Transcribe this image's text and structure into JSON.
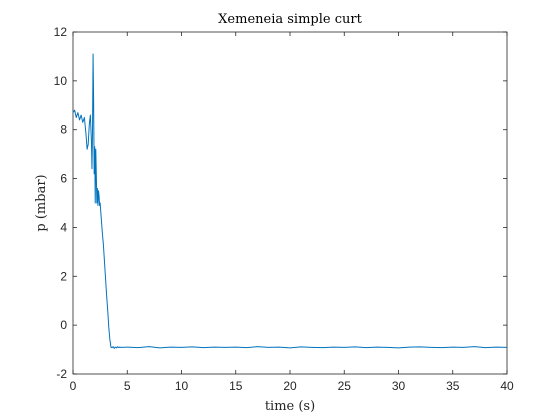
{
  "chart_data": {
    "type": "line",
    "title": "Xemeneia simple curt",
    "xlabel": "time (s)",
    "ylabel": "p (mbar)",
    "xlim": [
      0,
      40
    ],
    "ylim": [
      -2,
      12
    ],
    "xticks": [
      0,
      5,
      10,
      15,
      20,
      25,
      30,
      35,
      40
    ],
    "yticks": [
      -2,
      0,
      2,
      4,
      6,
      8,
      10,
      12
    ],
    "xtick_labels": [
      "0",
      "5",
      "10",
      "15",
      "20",
      "25",
      "30",
      "35",
      "40"
    ],
    "ytick_labels": [
      "-2",
      "0",
      "2",
      "4",
      "6",
      "8",
      "10",
      "12"
    ],
    "grid": false,
    "color": "#0072BD",
    "series": [
      {
        "x": [
          0,
          0.15,
          0.3,
          0.45,
          0.6,
          0.75,
          0.9,
          1.05,
          1.2,
          1.3,
          1.4,
          1.5,
          1.6,
          1.7,
          1.75,
          1.8,
          1.85,
          1.9,
          1.95,
          2.0,
          2.05,
          2.1,
          2.15,
          2.2,
          2.25,
          2.3,
          2.35,
          2.4,
          2.45,
          2.5,
          2.55,
          2.6,
          2.65,
          2.7,
          2.8,
          2.9,
          3.0,
          3.1,
          3.2,
          3.3,
          3.4,
          3.5,
          3.6,
          3.7,
          3.8,
          3.9,
          4.0,
          4.1,
          4.2,
          4.3,
          4.5,
          5.0,
          6,
          7,
          8,
          9,
          10,
          11,
          12,
          13,
          14,
          15,
          16,
          17,
          18,
          19,
          20,
          21,
          22,
          23,
          24,
          25,
          26,
          27,
          28,
          29,
          30,
          31,
          32,
          33,
          34,
          35,
          36,
          37,
          38,
          39,
          40
        ],
        "y": [
          8.7,
          8.8,
          8.5,
          8.7,
          8.4,
          8.6,
          8.3,
          8.5,
          7.8,
          7.2,
          7.4,
          8.2,
          8.6,
          7.5,
          6.4,
          8.0,
          11.1,
          9.2,
          6.2,
          7.3,
          5.0,
          7.2,
          6.1,
          5.0,
          5.6,
          4.9,
          5.5,
          5.3,
          4.9,
          5.0,
          4.7,
          4.4,
          4.1,
          3.8,
          3.3,
          2.6,
          1.9,
          1.2,
          0.6,
          -0.1,
          -0.6,
          -0.9,
          -0.92,
          -0.88,
          -0.95,
          -0.9,
          -0.93,
          -0.88,
          -0.92,
          -0.9,
          -0.91,
          -0.9,
          -0.92,
          -0.88,
          -0.93,
          -0.9,
          -0.91,
          -0.89,
          -0.92,
          -0.9,
          -0.91,
          -0.9,
          -0.92,
          -0.88,
          -0.91,
          -0.9,
          -0.93,
          -0.89,
          -0.91,
          -0.92,
          -0.9,
          -0.91,
          -0.89,
          -0.92,
          -0.9,
          -0.91,
          -0.93,
          -0.9,
          -0.89,
          -0.91,
          -0.92,
          -0.9,
          -0.91,
          -0.88,
          -0.92,
          -0.9,
          -0.91
        ]
      }
    ]
  }
}
